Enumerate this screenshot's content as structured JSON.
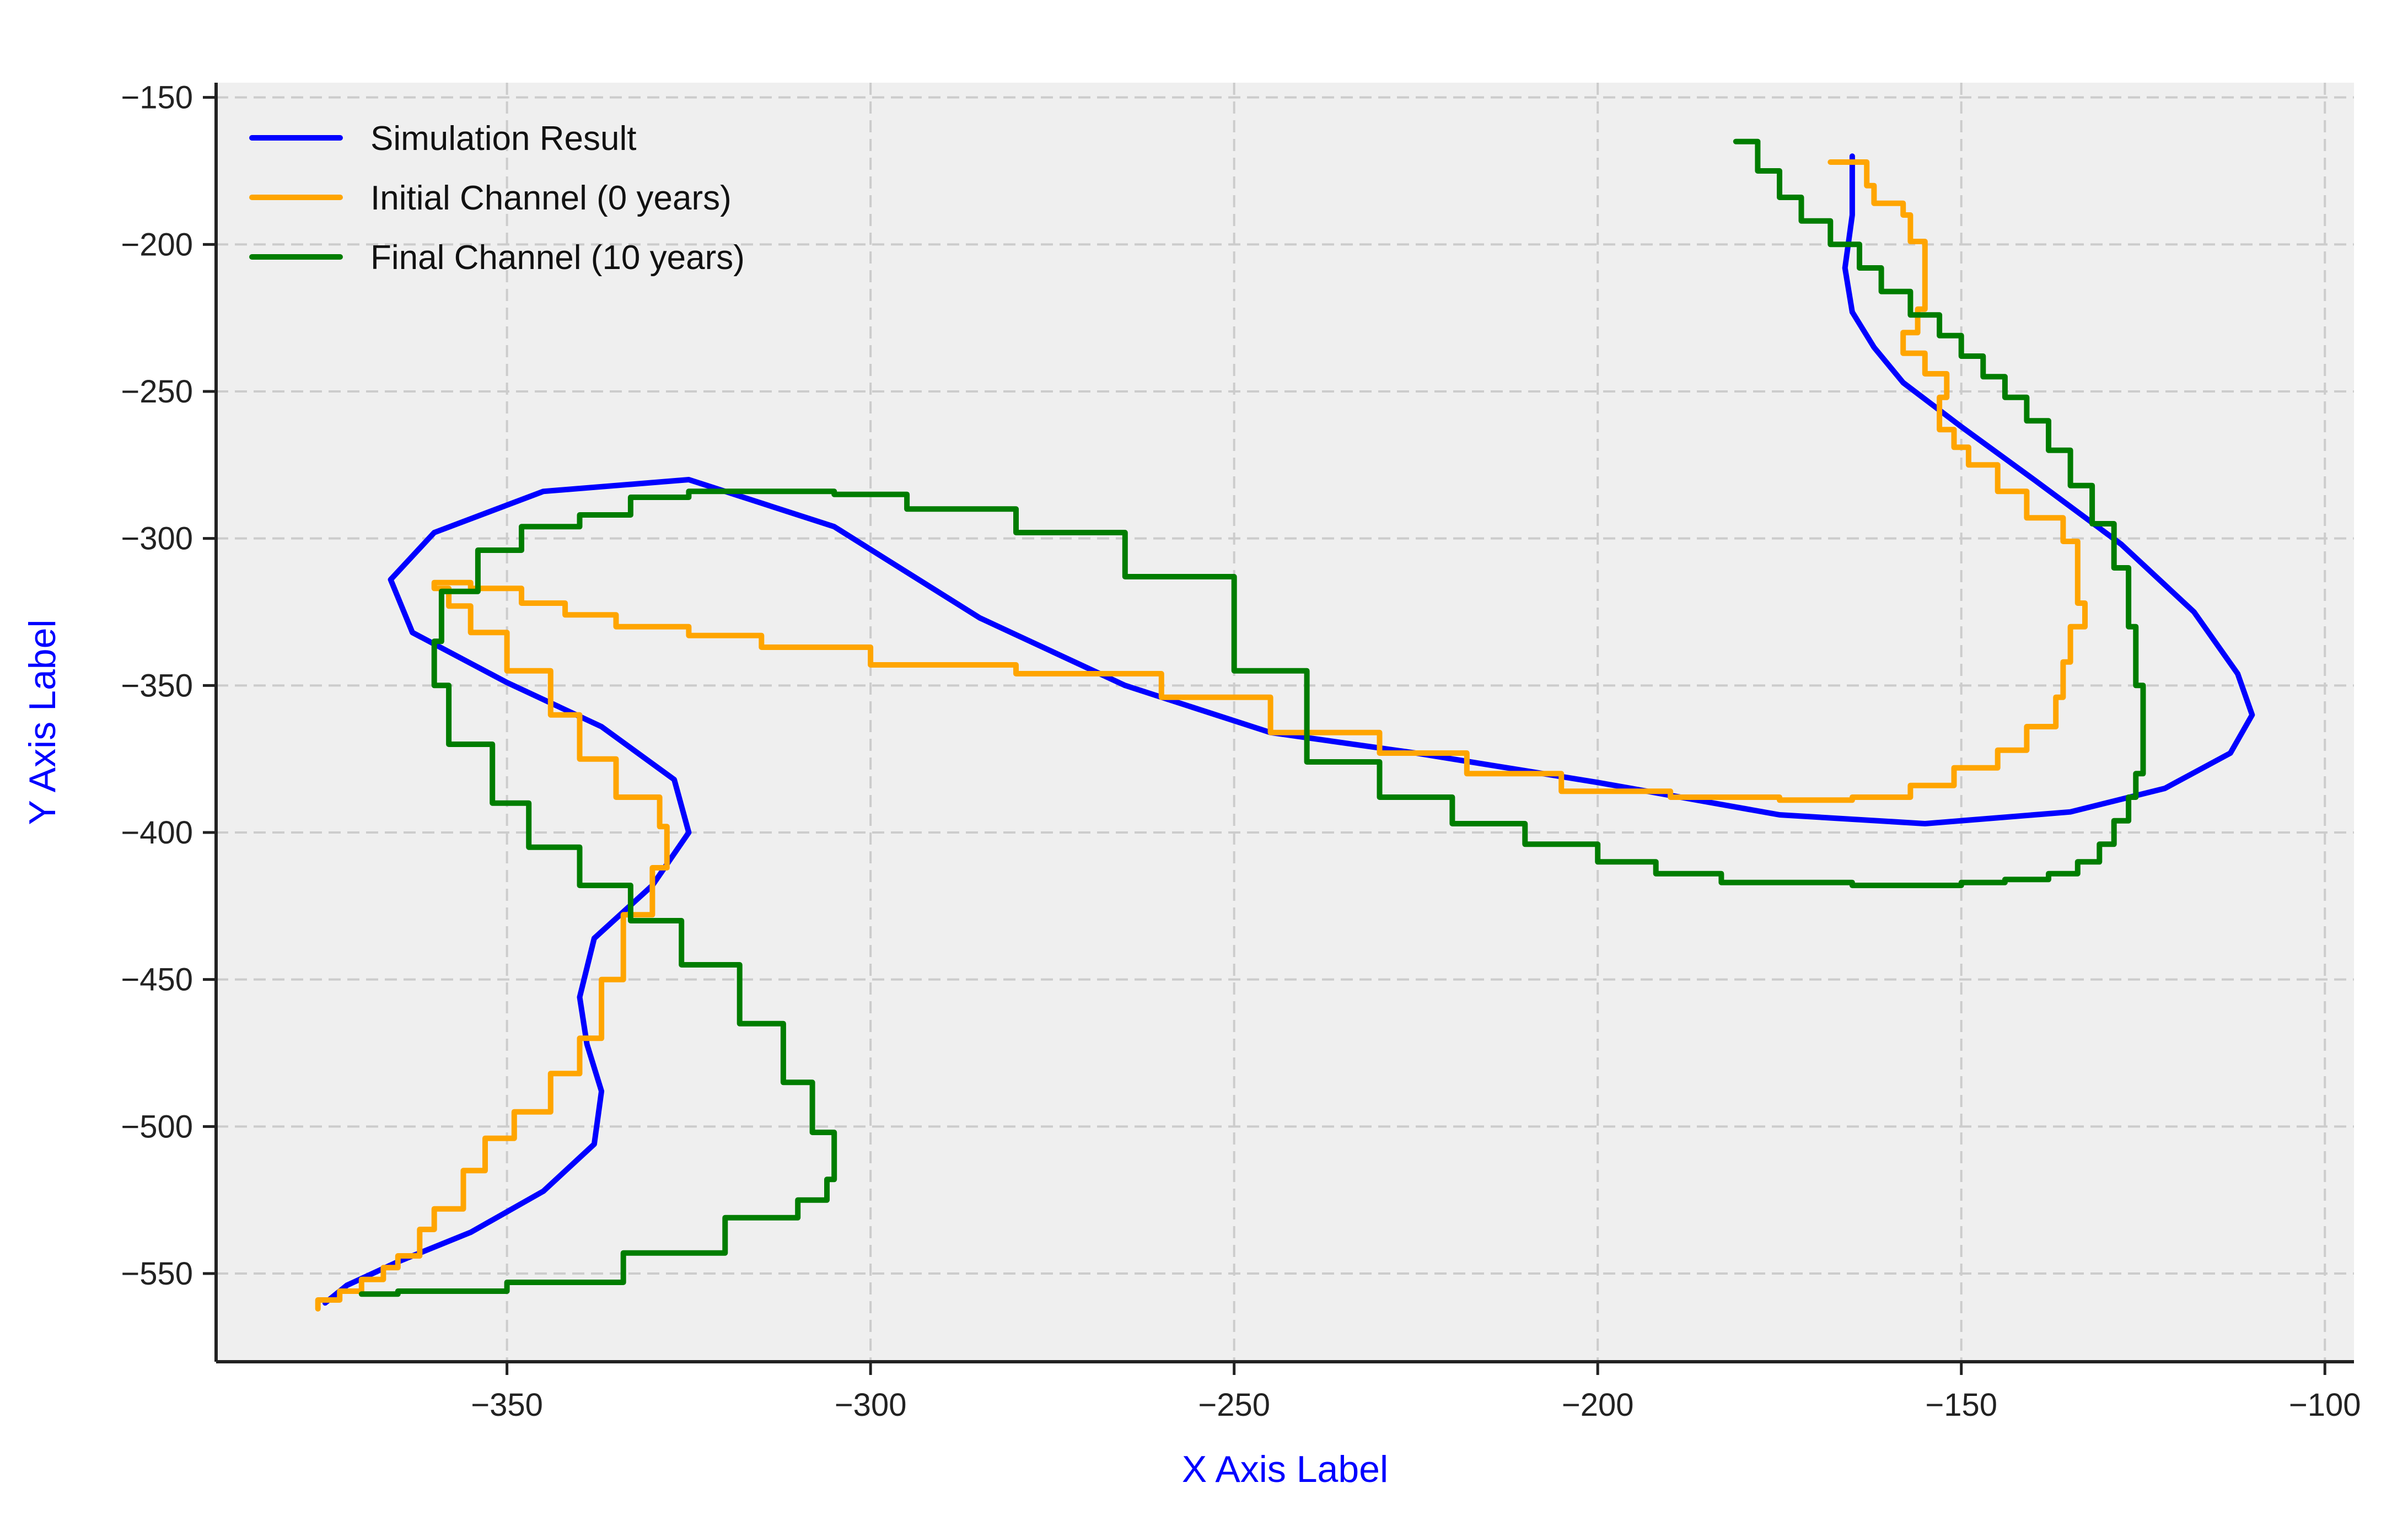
{
  "chart_data": {
    "type": "line",
    "xlabel": "X Axis Label",
    "ylabel": "Y Axis Label",
    "xlim": [
      -390,
      -96
    ],
    "ylim": [
      -580,
      -145
    ],
    "xticks": [
      -350,
      -300,
      -250,
      -200,
      -150,
      -100
    ],
    "yticks": [
      -150,
      -200,
      -250,
      -300,
      -350,
      -400,
      -450,
      -500,
      -550
    ],
    "xtick_labels": [
      "−350",
      "−300",
      "−250",
      "−200",
      "−150",
      "−100"
    ],
    "ytick_labels": [
      "−150",
      "−200",
      "−250",
      "−300",
      "−350",
      "−400",
      "−450",
      "−500",
      "−550"
    ],
    "grid": true,
    "legend_position": "top-left",
    "colors": {
      "background": "#efefef",
      "grid": "#cccccc",
      "axis": "#222222",
      "axis_title": "#0000ff"
    },
    "series": [
      {
        "name": "Simulation Result",
        "color": "#0000ff",
        "step": false,
        "x": [
          -165.0,
          -165.0,
          -166.0,
          -165.0,
          -162.0,
          -158.0,
          -150.0,
          -140.0,
          -128.0,
          -118.0,
          -112.0,
          -110.0,
          -113.0,
          -122.0,
          -135.0,
          -155.0,
          -175.0,
          -200.0,
          -225.0,
          -245.0,
          -265.0,
          -285.0,
          -305.0,
          -325.0,
          -345.0,
          -360.0,
          -366.0,
          -363.0,
          -350.0,
          -337.0,
          -327.0,
          -325.0,
          -330.0,
          -338.0,
          -340.0,
          -339.0,
          -337.0,
          -338.0,
          -345.0,
          -355.0,
          -365.0,
          -372.0,
          -375.0
        ],
        "y": [
          -170.0,
          -190.0,
          -208.0,
          -223.0,
          -235.0,
          -247.0,
          -262.0,
          -280.0,
          -302.0,
          -325.0,
          -346.0,
          -360.0,
          -373.0,
          -385.0,
          -393.0,
          -397.0,
          -394.0,
          -383.0,
          -373.0,
          -366.0,
          -350.0,
          -327.0,
          -296.0,
          -280.0,
          -284.0,
          -298.0,
          -314.0,
          -332.0,
          -349.0,
          -364.0,
          -382.0,
          -400.0,
          -418.0,
          -436.0,
          -456.0,
          -472.0,
          -488.0,
          -506.0,
          -522.0,
          -536.0,
          -546.0,
          -554.0,
          -560.0
        ]
      },
      {
        "name": "Initial Channel (0 years)",
        "color": "#ffa500",
        "step": true,
        "x": [
          -168.0,
          -163.0,
          -162.0,
          -158.0,
          -157.0,
          -155.0,
          -155.0,
          -156.0,
          -158.0,
          -155.0,
          -152.0,
          -153.0,
          -151.0,
          -149.0,
          -145.0,
          -141.0,
          -136.0,
          -134.0,
          -134.0,
          -133.0,
          -135.0,
          -136.0,
          -137.0,
          -141.0,
          -145.0,
          -151.0,
          -157.0,
          -165.0,
          -175.0,
          -190.0,
          -205.0,
          -218.0,
          -230.0,
          -245.0,
          -260.0,
          -280.0,
          -300.0,
          -315.0,
          -325.0,
          -335.0,
          -342.0,
          -348.0,
          -355.0,
          -360.0,
          -358.0,
          -355.0,
          -350.0,
          -344.0,
          -340.0,
          -335.0,
          -329.0,
          -328.0,
          -330.0,
          -334.0,
          -337.0,
          -340.0,
          -344.0,
          -349.0,
          -353.0,
          -356.0,
          -360.0,
          -362.0,
          -365.0,
          -367.0,
          -370.0,
          -373.0,
          -376.0
        ],
        "y": [
          -172.0,
          -180.0,
          -186.0,
          -190.0,
          -199.0,
          -215.0,
          -222.0,
          -230.0,
          -237.0,
          -244.0,
          -252.0,
          -263.0,
          -269.0,
          -275.0,
          -284.0,
          -293.0,
          -301.0,
          -312.0,
          -322.0,
          -330.0,
          -342.0,
          -354.0,
          -364.0,
          -372.0,
          -378.0,
          -384.0,
          -388.0,
          -389.0,
          -388.0,
          -386.0,
          -380.0,
          -373.0,
          -366.0,
          -354.0,
          -346.0,
          -343.0,
          -337.0,
          -333.0,
          -330.0,
          -326.0,
          -322.0,
          -317.0,
          -315.0,
          -317.0,
          -323.0,
          -332.0,
          -345.0,
          -360.0,
          -375.0,
          -388.0,
          -398.0,
          -412.0,
          -428.0,
          -450.0,
          -470.0,
          -482.0,
          -495.0,
          -504.0,
          -515.0,
          -528.0,
          -535.0,
          -544.0,
          -548.0,
          -552.0,
          -556.0,
          -559.0,
          -562.0
        ]
      },
      {
        "name": "Final Channel (10 years)",
        "color": "#007d00",
        "step": true,
        "x": [
          -181.0,
          -178.0,
          -175.0,
          -172.0,
          -168.0,
          -164.0,
          -161.0,
          -157.0,
          -153.0,
          -150.0,
          -147.0,
          -144.0,
          -141.0,
          -138.0,
          -135.0,
          -132.0,
          -129.0,
          -127.0,
          -126.0,
          -125.0,
          -125.0,
          -126.0,
          -127.0,
          -129.0,
          -131.0,
          -134.0,
          -138.0,
          -144.0,
          -150.0,
          -157.0,
          -165.0,
          -175.0,
          -183.0,
          -192.0,
          -200.0,
          -210.0,
          -220.0,
          -230.0,
          -240.0,
          -250.0,
          -265.0,
          -280.0,
          -295.0,
          -305.0,
          -315.0,
          -325.0,
          -333.0,
          -340.0,
          -348.0,
          -354.0,
          -359.0,
          -360.0,
          -358.0,
          -352.0,
          -347.0,
          -340.0,
          -333.0,
          -326.0,
          -318.0,
          -312.0,
          -308.0,
          -305.0,
          -306.0,
          -310.0,
          -320.0,
          -334.0,
          -350.0,
          -365.0,
          -370.0
        ],
        "y": [
          -165.0,
          -175.0,
          -184.0,
          -192.0,
          -200.0,
          -208.0,
          -216.0,
          -224.0,
          -231.0,
          -238.0,
          -245.0,
          -252.0,
          -260.0,
          -270.0,
          -282.0,
          -295.0,
          -310.0,
          -330.0,
          -350.0,
          -365.0,
          -380.0,
          -388.0,
          -396.0,
          -404.0,
          -410.0,
          -414.0,
          -416.0,
          -417.0,
          -418.0,
          -418.0,
          -417.0,
          -417.0,
          -414.0,
          -410.0,
          -404.0,
          -397.0,
          -388.0,
          -376.0,
          -345.0,
          -313.0,
          -298.0,
          -290.0,
          -285.0,
          -284.0,
          -284.0,
          -286.0,
          -292.0,
          -296.0,
          -304.0,
          -318.0,
          -335.0,
          -350.0,
          -370.0,
          -390.0,
          -405.0,
          -418.0,
          -430.0,
          -445.0,
          -465.0,
          -485.0,
          -502.0,
          -518.0,
          -525.0,
          -531.0,
          -543.0,
          -553.0,
          -556.0,
          -557.0,
          -557.0
        ]
      }
    ]
  }
}
